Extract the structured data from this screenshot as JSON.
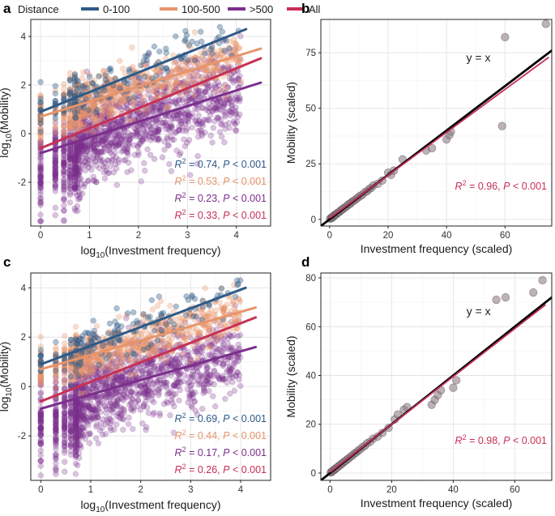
{
  "legend": {
    "title": "Distance",
    "entries": [
      {
        "key": "d0_100",
        "label": "0-100",
        "color": "#2e5a87"
      },
      {
        "key": "d100_500",
        "label": "100-500",
        "color": "#e8946a"
      },
      {
        "key": "d500",
        "label": ">500",
        "color": "#7b2f8c"
      },
      {
        "key": "all",
        "label": "All",
        "color": "#c73055"
      }
    ]
  },
  "chart_data": [
    {
      "panel": "a",
      "type": "scatter",
      "xlabel_pre": "log",
      "xlabel_sub": "10",
      "xlabel_post": "(Investment frequency)",
      "ylabel_pre": "log",
      "ylabel_sub": "10",
      "ylabel_post": "(Mobility)",
      "xlim": [
        -0.2,
        4.7
      ],
      "ylim": [
        -3.8,
        4.7
      ],
      "xticks": [
        0,
        1,
        2,
        3,
        4
      ],
      "yticks": [
        -2,
        0,
        2,
        4
      ],
      "fit_lines": [
        {
          "key": "d0_100",
          "x": [
            0,
            4.2
          ],
          "y": [
            0.9,
            4.3
          ]
        },
        {
          "key": "d100_500",
          "x": [
            0,
            4.5
          ],
          "y": [
            0.7,
            3.5
          ]
        },
        {
          "key": "d500",
          "x": [
            0,
            4.5
          ],
          "y": [
            -0.8,
            2.1
          ]
        },
        {
          "key": "all",
          "x": [
            0,
            4.5
          ],
          "y": [
            -0.6,
            3.1
          ]
        }
      ],
      "annotations": [
        {
          "key": "d0_100",
          "r2": "0.74",
          "p": "0.001"
        },
        {
          "key": "d100_500",
          "r2": "0.53",
          "p": "0.001"
        },
        {
          "key": "d500",
          "r2": "0.23",
          "p": "0.001"
        },
        {
          "key": "all",
          "r2": "0.33",
          "p": "0.001"
        }
      ]
    },
    {
      "panel": "b",
      "type": "scatter",
      "xlabel": "Investment frequency (scaled)",
      "ylabel": "Mobility (scaled)",
      "xlim": [
        -3,
        76
      ],
      "ylim": [
        -3,
        90
      ],
      "xticks": [
        0,
        20,
        40,
        60
      ],
      "yticks": [
        0,
        25,
        50,
        75
      ],
      "identity_label": "y = x",
      "identity_line": {
        "x": [
          -3,
          78
        ],
        "y": [
          -3,
          78
        ]
      },
      "fit_line": {
        "x": [
          0,
          75
        ],
        "y": [
          0.5,
          73
        ]
      },
      "points": [
        [
          0.2,
          0.3
        ],
        [
          0.5,
          0.6
        ],
        [
          0.8,
          0.7
        ],
        [
          1.0,
          1.2
        ],
        [
          1.3,
          1.1
        ],
        [
          1.6,
          1.9
        ],
        [
          2.0,
          2.1
        ],
        [
          2.3,
          2.2
        ],
        [
          2.7,
          2.9
        ],
        [
          3.0,
          3.1
        ],
        [
          3.4,
          3.3
        ],
        [
          3.8,
          4.0
        ],
        [
          4.2,
          4.4
        ],
        [
          4.6,
          4.6
        ],
        [
          5.0,
          5.2
        ],
        [
          5.5,
          5.5
        ],
        [
          6.0,
          6.1
        ],
        [
          6.5,
          6.8
        ],
        [
          7.0,
          7.0
        ],
        [
          7.5,
          7.7
        ],
        [
          8.0,
          8.2
        ],
        [
          8.6,
          8.6
        ],
        [
          9.2,
          9.3
        ],
        [
          9.8,
          9.9
        ],
        [
          10.5,
          10.6
        ],
        [
          11.2,
          11.0
        ],
        [
          12.0,
          12.2
        ],
        [
          12.8,
          12.6
        ],
        [
          13.5,
          13.6
        ],
        [
          14.3,
          14.2
        ],
        [
          15.0,
          15.3
        ],
        [
          16.5,
          16.0
        ],
        [
          18.0,
          17.5
        ],
        [
          20.0,
          21.0
        ],
        [
          21.0,
          20.0
        ],
        [
          22.0,
          22.0
        ],
        [
          25.0,
          27.0
        ],
        [
          33.0,
          31.0
        ],
        [
          35.0,
          32.0
        ],
        [
          40.0,
          36.0
        ],
        [
          41.0,
          38.0
        ],
        [
          41.5,
          39.5
        ],
        [
          59.0,
          42.0
        ],
        [
          60.0,
          82.0
        ],
        [
          74.0,
          88.0
        ]
      ],
      "annotation": {
        "r2": "0.96",
        "p": "0.001"
      }
    },
    {
      "panel": "c",
      "type": "scatter",
      "xlabel_pre": "log",
      "xlabel_sub": "10",
      "xlabel_post": "(Investment frequency)",
      "ylabel_pre": "log",
      "ylabel_sub": "10",
      "ylabel_post": "(Mobility)",
      "xlim": [
        -0.2,
        4.6
      ],
      "ylim": [
        -3.8,
        4.6
      ],
      "xticks": [
        0,
        1,
        2,
        3,
        4
      ],
      "yticks": [
        -2,
        0,
        2,
        4
      ],
      "fit_lines": [
        {
          "key": "d0_100",
          "x": [
            0,
            4.1
          ],
          "y": [
            0.9,
            4.0
          ]
        },
        {
          "key": "d100_500",
          "x": [
            0,
            4.3
          ],
          "y": [
            0.7,
            3.2
          ]
        },
        {
          "key": "d500",
          "x": [
            0,
            4.3
          ],
          "y": [
            -0.9,
            1.6
          ]
        },
        {
          "key": "all",
          "x": [
            0,
            4.3
          ],
          "y": [
            -0.6,
            2.8
          ]
        }
      ],
      "annotations": [
        {
          "key": "d0_100",
          "r2": "0.69",
          "p": "0.001"
        },
        {
          "key": "d100_500",
          "r2": "0.44",
          "p": "0.001"
        },
        {
          "key": "d500",
          "r2": "0.17",
          "p": "0.001"
        },
        {
          "key": "all",
          "r2": "0.26",
          "p": "0.001"
        }
      ]
    },
    {
      "panel": "d",
      "type": "scatter",
      "xlabel": "Investment frequency (scaled)",
      "ylabel": "Mobility (scaled)",
      "xlim": [
        -3,
        72
      ],
      "ylim": [
        -3,
        82
      ],
      "xticks": [
        0,
        20,
        40,
        60
      ],
      "yticks": [
        0,
        20,
        40,
        60,
        80
      ],
      "identity_label": "y = x",
      "identity_line": {
        "x": [
          -3,
          73
        ],
        "y": [
          -3,
          73
        ]
      },
      "fit_line": {
        "x": [
          0,
          70
        ],
        "y": [
          0.3,
          69
        ]
      },
      "points": [
        [
          0.2,
          0.3
        ],
        [
          0.5,
          0.4
        ],
        [
          0.8,
          0.9
        ],
        [
          1.1,
          1.0
        ],
        [
          1.4,
          1.5
        ],
        [
          1.8,
          1.7
        ],
        [
          2.1,
          2.2
        ],
        [
          2.5,
          2.4
        ],
        [
          2.9,
          3.0
        ],
        [
          3.3,
          3.2
        ],
        [
          3.7,
          3.8
        ],
        [
          4.1,
          4.0
        ],
        [
          4.6,
          4.7
        ],
        [
          5.1,
          5.0
        ],
        [
          5.6,
          5.7
        ],
        [
          6.1,
          6.0
        ],
        [
          6.7,
          6.8
        ],
        [
          7.3,
          7.2
        ],
        [
          7.9,
          8.0
        ],
        [
          8.5,
          8.4
        ],
        [
          9.1,
          9.2
        ],
        [
          9.8,
          9.7
        ],
        [
          10.5,
          10.6
        ],
        [
          11.3,
          11.1
        ],
        [
          12.0,
          12.2
        ],
        [
          13.0,
          12.8
        ],
        [
          14.0,
          14.1
        ],
        [
          15.5,
          15.0
        ],
        [
          17.0,
          16.5
        ],
        [
          19.0,
          18.5
        ],
        [
          21.0,
          22.0
        ],
        [
          22.0,
          24.0
        ],
        [
          24.0,
          26.0
        ],
        [
          25.0,
          27.0
        ],
        [
          33.0,
          28.0
        ],
        [
          34.0,
          30.0
        ],
        [
          35.0,
          32.0
        ],
        [
          36.0,
          34.0
        ],
        [
          40.0,
          35.0
        ],
        [
          41.0,
          38.0
        ],
        [
          54.0,
          71.0
        ],
        [
          57.0,
          72.0
        ],
        [
          66.0,
          74.0
        ],
        [
          69.0,
          79.0
        ]
      ],
      "annotation": {
        "r2": "0.98",
        "p": "0.001"
      }
    }
  ],
  "static_text": {
    "p_letter": "P",
    "r_letter": "R",
    "sup2": "2",
    "lt": "<"
  }
}
